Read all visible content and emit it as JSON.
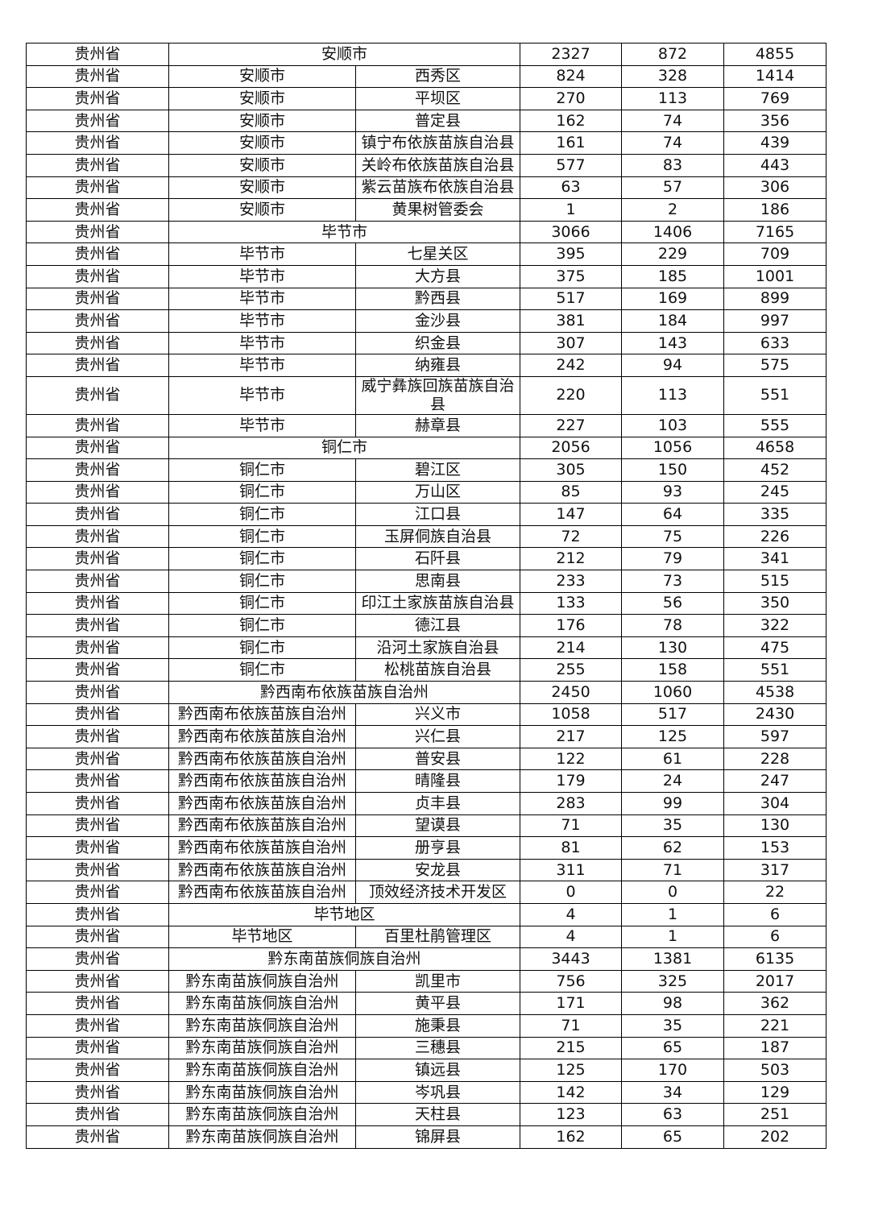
{
  "table": {
    "rows": [
      [
        "贵州省",
        "安顺市",
        2327,
        872,
        4855
      ],
      [
        "贵州省",
        "安顺市",
        "西秀区",
        824,
        328,
        1414
      ],
      [
        "贵州省",
        "安顺市",
        "平坝区",
        270,
        113,
        769
      ],
      [
        "贵州省",
        "安顺市",
        "普定县",
        162,
        74,
        356
      ],
      [
        "贵州省",
        "安顺市",
        "镇宁布依族苗族自治县",
        161,
        74,
        439
      ],
      [
        "贵州省",
        "安顺市",
        "关岭布依族苗族自治县",
        577,
        83,
        443
      ],
      [
        "贵州省",
        "安顺市",
        "紫云苗族布依族自治县",
        63,
        57,
        306
      ],
      [
        "贵州省",
        "安顺市",
        "黄果树管委会",
        1,
        2,
        186
      ],
      [
        "贵州省",
        "毕节市",
        3066,
        1406,
        7165
      ],
      [
        "贵州省",
        "毕节市",
        "七星关区",
        395,
        229,
        709
      ],
      [
        "贵州省",
        "毕节市",
        "大方县",
        375,
        185,
        1001
      ],
      [
        "贵州省",
        "毕节市",
        "黔西县",
        517,
        169,
        899
      ],
      [
        "贵州省",
        "毕节市",
        "金沙县",
        381,
        184,
        997
      ],
      [
        "贵州省",
        "毕节市",
        "织金县",
        307,
        143,
        633
      ],
      [
        "贵州省",
        "毕节市",
        "纳雍县",
        242,
        94,
        575
      ],
      [
        "贵州省",
        "毕节市",
        "威宁彝族回族苗族自治县",
        220,
        113,
        551
      ],
      [
        "贵州省",
        "毕节市",
        "赫章县",
        227,
        103,
        555
      ],
      [
        "贵州省",
        "铜仁市",
        2056,
        1056,
        4658
      ],
      [
        "贵州省",
        "铜仁市",
        "碧江区",
        305,
        150,
        452
      ],
      [
        "贵州省",
        "铜仁市",
        "万山区",
        85,
        93,
        245
      ],
      [
        "贵州省",
        "铜仁市",
        "江口县",
        147,
        64,
        335
      ],
      [
        "贵州省",
        "铜仁市",
        "玉屏侗族自治县",
        72,
        75,
        226
      ],
      [
        "贵州省",
        "铜仁市",
        "石阡县",
        212,
        79,
        341
      ],
      [
        "贵州省",
        "铜仁市",
        "思南县",
        233,
        73,
        515
      ],
      [
        "贵州省",
        "铜仁市",
        "印江土家族苗族自治县",
        133,
        56,
        350
      ],
      [
        "贵州省",
        "铜仁市",
        "德江县",
        176,
        78,
        322
      ],
      [
        "贵州省",
        "铜仁市",
        "沿河土家族自治县",
        214,
        130,
        475
      ],
      [
        "贵州省",
        "铜仁市",
        "松桃苗族自治县",
        255,
        158,
        551
      ],
      [
        "贵州省",
        "黔西南布依族苗族自治州",
        2450,
        1060,
        4538
      ],
      [
        "贵州省",
        "黔西南布依族苗族自治州",
        "兴义市",
        1058,
        517,
        2430
      ],
      [
        "贵州省",
        "黔西南布依族苗族自治州",
        "兴仁县",
        217,
        125,
        597
      ],
      [
        "贵州省",
        "黔西南布依族苗族自治州",
        "普安县",
        122,
        61,
        228
      ],
      [
        "贵州省",
        "黔西南布依族苗族自治州",
        "晴隆县",
        179,
        24,
        247
      ],
      [
        "贵州省",
        "黔西南布依族苗族自治州",
        "贞丰县",
        283,
        99,
        304
      ],
      [
        "贵州省",
        "黔西南布依族苗族自治州",
        "望谟县",
        71,
        35,
        130
      ],
      [
        "贵州省",
        "黔西南布依族苗族自治州",
        "册亨县",
        81,
        62,
        153
      ],
      [
        "贵州省",
        "黔西南布依族苗族自治州",
        "安龙县",
        311,
        71,
        317
      ],
      [
        "贵州省",
        "黔西南布依族苗族自治州",
        "顶效经济技术开发区",
        0,
        0,
        22
      ],
      [
        "贵州省",
        "毕节地区",
        4,
        1,
        6
      ],
      [
        "贵州省",
        "毕节地区",
        "百里杜鹃管理区",
        4,
        1,
        6
      ],
      [
        "贵州省",
        "黔东南苗族侗族自治州",
        3443,
        1381,
        6135
      ],
      [
        "贵州省",
        "黔东南苗族侗族自治州",
        "凯里市",
        756,
        325,
        2017
      ],
      [
        "贵州省",
        "黔东南苗族侗族自治州",
        "黄平县",
        171,
        98,
        362
      ],
      [
        "贵州省",
        "黔东南苗族侗族自治州",
        "施秉县",
        71,
        35,
        221
      ],
      [
        "贵州省",
        "黔东南苗族侗族自治州",
        "三穗县",
        215,
        65,
        187
      ],
      [
        "贵州省",
        "黔东南苗族侗族自治州",
        "镇远县",
        125,
        170,
        503
      ],
      [
        "贵州省",
        "黔东南苗族侗族自治州",
        "岑巩县",
        142,
        34,
        129
      ],
      [
        "贵州省",
        "黔东南苗族侗族自治州",
        "天柱县",
        123,
        63,
        251
      ],
      [
        "贵州省",
        "黔东南苗族侗族自治州",
        "锦屏县",
        162,
        65,
        202
      ]
    ]
  }
}
